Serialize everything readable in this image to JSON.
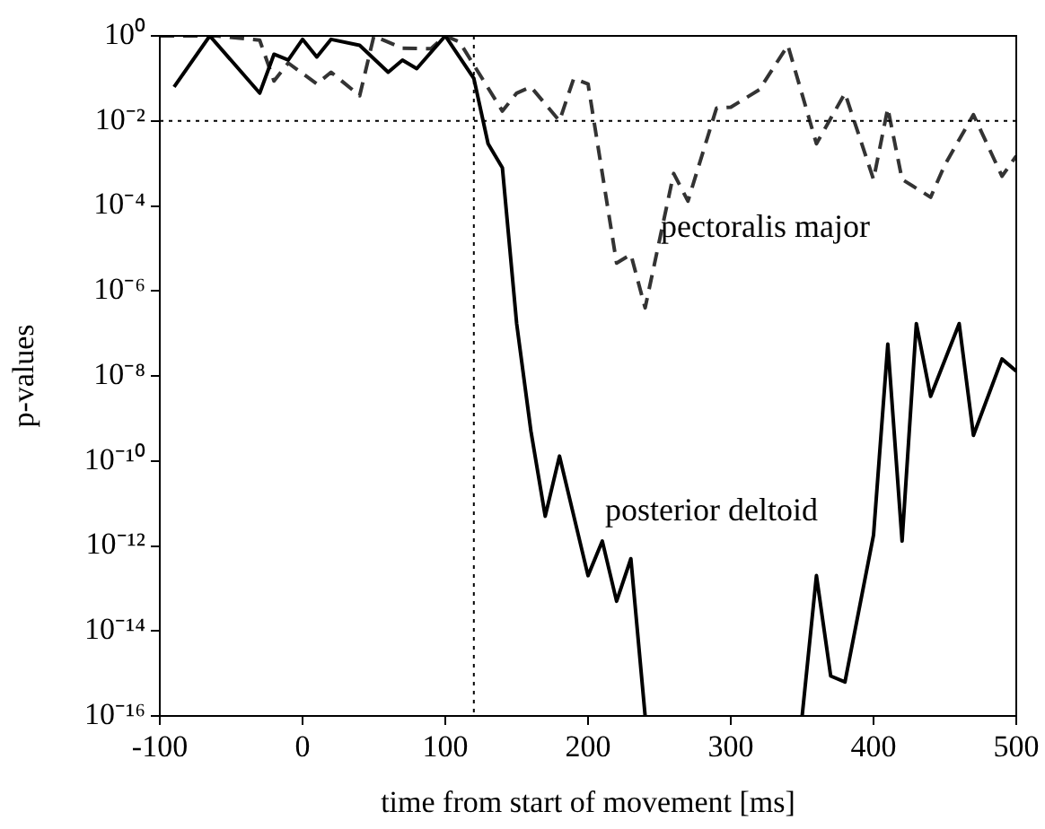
{
  "chart_data": {
    "type": "line",
    "xlabel": "time from start of movement [ms]",
    "ylabel": "p-values",
    "xlim": [
      -100,
      500
    ],
    "xticks": [
      -100,
      0,
      100,
      200,
      300,
      400,
      500
    ],
    "ylim": [
      1e-16,
      1
    ],
    "log": "y",
    "yticks": [
      {
        "value": 1,
        "label": "10⁰"
      },
      {
        "value": 0.01,
        "label": "10⁻²"
      },
      {
        "value": 0.0001,
        "label": "10⁻⁴"
      },
      {
        "value": 1e-06,
        "label": "10⁻⁶"
      },
      {
        "value": 1e-08,
        "label": "10⁻⁸"
      },
      {
        "value": 1e-10,
        "label": "10⁻¹⁰"
      },
      {
        "value": 1e-12,
        "label": "10⁻¹²"
      },
      {
        "value": 1e-14,
        "label": "10⁻¹⁴"
      },
      {
        "value": 1e-16,
        "label": "10⁻¹⁶"
      }
    ],
    "grid": false,
    "legend": false,
    "marker": "none",
    "ref_lines": [
      {
        "axis": "y",
        "value": 0.01,
        "line_style": "dotted",
        "color": "#000000"
      },
      {
        "axis": "x",
        "value": 120,
        "line_style": "dotted",
        "color": "#000000"
      }
    ],
    "series": [
      {
        "name": "posterior deltoid",
        "color": "#000000",
        "line_style": "solid",
        "x": [
          -90,
          -65,
          -30,
          -20,
          -10,
          0,
          10,
          20,
          40,
          60,
          70,
          80,
          100,
          120,
          130,
          140,
          150,
          160,
          170,
          180,
          200,
          210,
          220,
          230,
          240,
          300,
          350,
          360,
          370,
          380,
          400,
          410,
          420,
          430,
          440,
          460,
          470,
          490,
          500
        ],
        "values": [
          0.063,
          1,
          0.045,
          0.37,
          0.27,
          0.83,
          0.32,
          0.83,
          0.6,
          0.14,
          0.27,
          0.17,
          1,
          0.1,
          0.0029,
          0.00079,
          1.7e-07,
          5e-10,
          5e-12,
          1.3e-10,
          2e-13,
          1.3e-12,
          5e-14,
          5e-13,
          1e-16,
          null,
          1e-16,
          2e-13,
          8.7e-16,
          6.3e-16,
          1.8e-12,
          5.6e-08,
          1.3e-12,
          1.7e-07,
          3.3e-09,
          1.7e-07,
          4e-10,
          2.5e-08,
          1.3e-08
        ]
      },
      {
        "name": "pectoralis major",
        "color": "#333333",
        "line_style": "dashed",
        "x": [
          -100,
          -60,
          -30,
          -20,
          -10,
          10,
          20,
          40,
          50,
          70,
          90,
          100,
          110,
          140,
          150,
          160,
          180,
          190,
          200,
          220,
          230,
          240,
          260,
          270,
          290,
          300,
          320,
          340,
          360,
          380,
          400,
          410,
          420,
          440,
          450,
          470,
          490,
          500
        ],
        "values": [
          1,
          1,
          0.79,
          0.087,
          0.23,
          0.074,
          0.14,
          0.039,
          1,
          0.51,
          0.5,
          1,
          0.72,
          0.017,
          0.045,
          0.063,
          0.01,
          0.1,
          0.074,
          4.5e-06,
          7.2e-06,
          4e-07,
          0.00058,
          0.00013,
          0.02,
          0.021,
          0.054,
          0.6,
          0.0029,
          0.045,
          0.00042,
          0.02,
          0.00042,
          0.00016,
          0.00093,
          0.014,
          0.0005,
          0.0015
        ]
      }
    ]
  }
}
